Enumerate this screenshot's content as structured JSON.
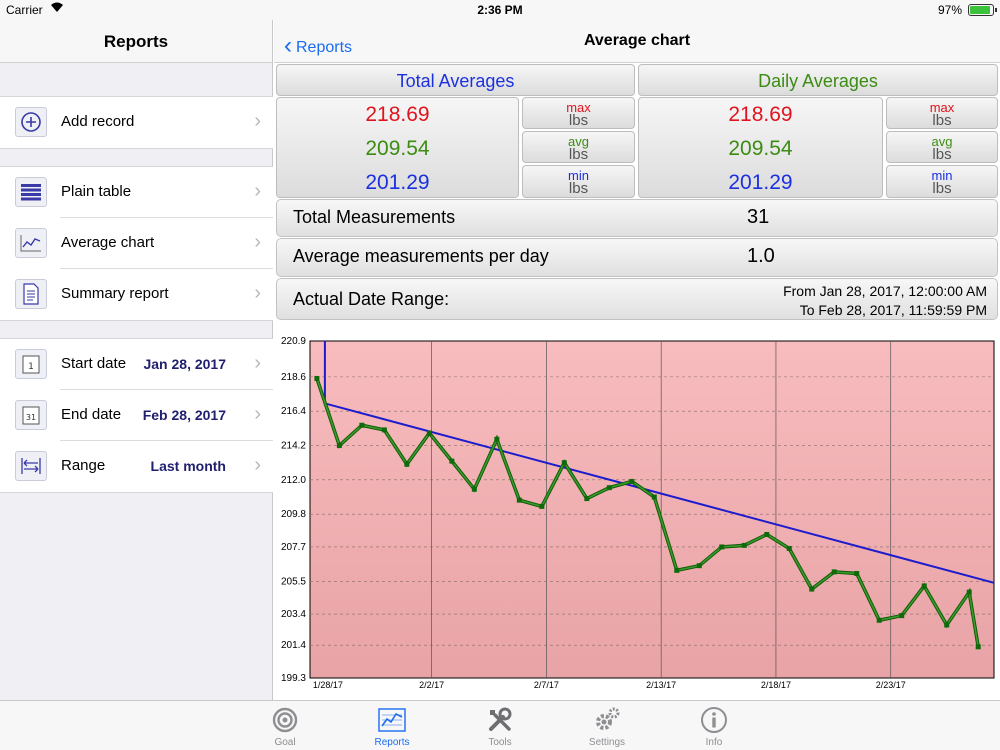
{
  "status": {
    "carrier": "Carrier",
    "time": "2:36 PM",
    "battery": "97%"
  },
  "left": {
    "title": "Reports",
    "add_record": "Add record",
    "reports": [
      "Plain table",
      "Average chart",
      "Summary report"
    ],
    "start_label": "Start date",
    "start_value": "Jan 28, 2017",
    "end_label": "End date",
    "end_value": "Feb 28, 2017",
    "range_label": "Range",
    "range_value": "Last month"
  },
  "right": {
    "back": "Reports",
    "title": "Average chart",
    "total_header": "Total Averages",
    "daily_header": "Daily Averages",
    "total": {
      "max": "218.69",
      "avg": "209.54",
      "min": "201.29"
    },
    "daily": {
      "max": "218.69",
      "avg": "209.54",
      "min": "201.29"
    },
    "max_label": "max",
    "avg_label": "avg",
    "min_label": "min",
    "unit": "lbs",
    "total_measurements_label": "Total Measurements",
    "total_measurements": "31",
    "avg_per_day_label": "Average measurements per day",
    "avg_per_day": "1.0",
    "date_range_label": "Actual Date Range:",
    "date_from": "From Jan 28, 2017, 12:00:00 AM",
    "date_to": "To Feb 28, 2017, 11:59:59 PM"
  },
  "chart_data": {
    "type": "line",
    "y_ticks": [
      "220.9",
      "218.6",
      "216.4",
      "214.2",
      "212.0",
      "209.8",
      "207.7",
      "205.5",
      "203.4",
      "201.4",
      "199.3"
    ],
    "ylim": [
      199.3,
      220.9
    ],
    "x_ticks": [
      "1/28/17",
      "2/2/17",
      "2/7/17",
      "2/13/17",
      "2/18/17",
      "2/23/17"
    ],
    "x_tick_days": [
      0,
      5,
      10,
      15,
      20,
      25
    ],
    "xlim": [
      -0.3,
      29.5
    ],
    "series": [
      {
        "color": "#1a7a10",
        "x": [
          0,
          1,
          2,
          3,
          4,
          5,
          6,
          7,
          8,
          9,
          10,
          11,
          12,
          13,
          14,
          15,
          16,
          17,
          18,
          19,
          20,
          21,
          22,
          23,
          24,
          25,
          26,
          27,
          28,
          29
        ],
        "y": [
          218.5,
          214.2,
          215.5,
          215.2,
          213.0,
          215.0,
          213.2,
          211.4,
          214.6,
          210.7,
          210.3,
          213.1,
          210.8,
          211.5,
          211.9,
          210.9,
          206.2,
          206.5,
          207.7,
          207.8,
          208.5,
          207.6,
          205.0,
          206.1,
          206.0,
          203.0,
          203.3,
          205.2,
          202.7,
          204.8
        ],
        "y_extra": [
          201.3
        ]
      },
      {
        "color": "#1c1ccc",
        "trend_start": [
          0,
          216.9
        ],
        "trend_end": [
          29.5,
          205.4
        ]
      }
    ],
    "grid": true,
    "background": "#f4b3b5"
  },
  "tabs": [
    {
      "label": "Goal",
      "icon": "target-icon"
    },
    {
      "label": "Reports",
      "icon": "chart-icon"
    },
    {
      "label": "Tools",
      "icon": "tools-icon"
    },
    {
      "label": "Settings",
      "icon": "gear-icon"
    },
    {
      "label": "Info",
      "icon": "info-icon"
    }
  ],
  "colors": {
    "accent": "#1a6cf0",
    "max": "#e0141e",
    "avg": "#3c8c14",
    "min": "#1c30e0"
  }
}
